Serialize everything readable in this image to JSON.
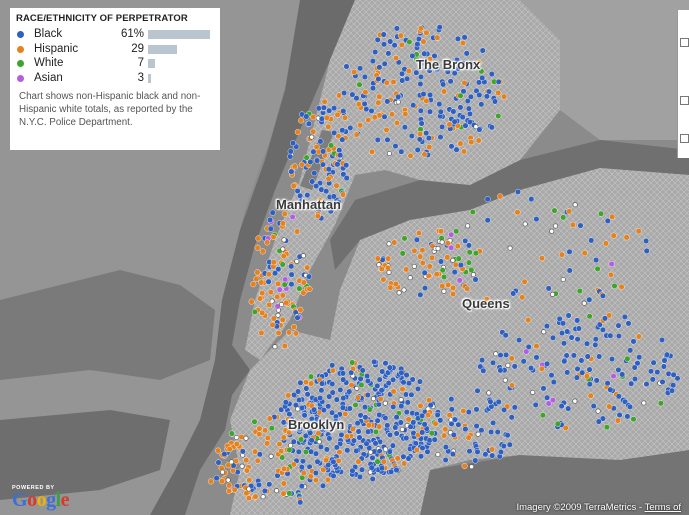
{
  "legend": {
    "title": "RACE/ETHNICITY OF PERPETRATOR",
    "items": [
      {
        "label": "Black",
        "value": "61%",
        "share": 61,
        "color": "#2f5fbf"
      },
      {
        "label": "Hispanic",
        "value": "29",
        "share": 29,
        "color": "#e3821e"
      },
      {
        "label": "White",
        "value": "7",
        "share": 7,
        "color": "#3fa32c"
      },
      {
        "label": "Asian",
        "value": "3",
        "share": 3,
        "color": "#b55de0"
      }
    ],
    "note": "Chart shows non-Hispanic black and non-Hispanic white totals, as reported by the N.Y.C. Police Department."
  },
  "places": {
    "bronx": "The Bronx",
    "manhattan": "Manhattan",
    "queens": "Queens",
    "brooklyn": "Brooklyn"
  },
  "attribution": {
    "prefix": "Imagery ©2009 TerraMetrics",
    "terms": "Terms of"
  },
  "powered": {
    "top": "POWERED BY",
    "logo": "Google"
  },
  "colors": {
    "black": "#2f5fbf",
    "hispanic": "#e3821e",
    "white": "#3fa32c",
    "asian": "#b55de0",
    "marker": "#ffffff"
  }
}
